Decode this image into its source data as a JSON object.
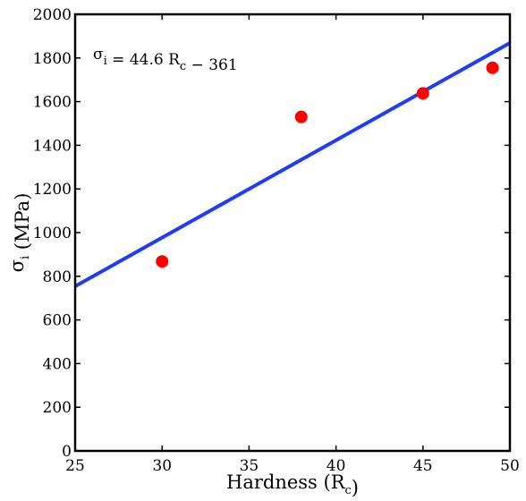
{
  "chart_data": {
    "type": "scatter",
    "xlabel": {
      "main": "Hardness (R",
      "sub": "c",
      "tail": ")"
    },
    "ylabel": {
      "main": "σ",
      "sub": "i",
      "tail": " (MPa)"
    },
    "xlim": [
      25,
      50
    ],
    "ylim": [
      0,
      2000
    ],
    "x_ticks": [
      25,
      30,
      35,
      40,
      45,
      50
    ],
    "y_ticks": [
      0,
      200,
      400,
      600,
      800,
      1000,
      1200,
      1400,
      1600,
      1800,
      2000
    ],
    "grid": false,
    "series": [
      {
        "kind": "points",
        "color": "#ff0000",
        "points": [
          {
            "x": 30,
            "y": 868
          },
          {
            "x": 38,
            "y": 1530
          },
          {
            "x": 45,
            "y": 1638
          },
          {
            "x": 49,
            "y": 1755
          }
        ]
      },
      {
        "kind": "fit-line",
        "color": "#1f3bff",
        "slope": 44.6,
        "intercept": -361
      }
    ],
    "annotation": {
      "parts": [
        {
          "text": "σ",
          "sub": false
        },
        {
          "text": "i",
          "sub": true
        },
        {
          "text": " = 44.6 R",
          "sub": false
        },
        {
          "text": "c",
          "sub": true
        },
        {
          "text": " − 361",
          "sub": false
        }
      ]
    }
  }
}
